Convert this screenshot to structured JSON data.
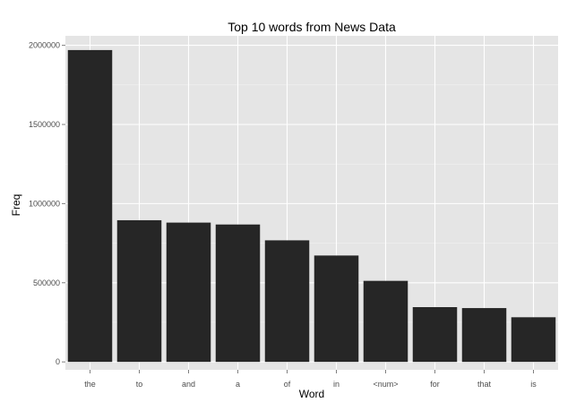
{
  "chart_data": {
    "type": "bar",
    "title": "Top 10 words from News Data",
    "xlabel": "Word",
    "ylabel": "Freq",
    "categories": [
      "the",
      "to",
      "and",
      "a",
      "of",
      "in",
      "<num>",
      "for",
      "that",
      "is"
    ],
    "values": [
      1970000,
      895000,
      880000,
      868000,
      768000,
      672000,
      512000,
      346000,
      340000,
      282000
    ],
    "ylim": [
      -50000,
      2060000
    ],
    "yticks": [
      0,
      500000,
      1000000,
      1500000,
      2000000
    ],
    "ytick_labels": [
      "0",
      "500000",
      "1000000",
      "1500000",
      "2000000"
    ],
    "grid": true,
    "colors": {
      "panel": "#e5e5e5",
      "grid_major": "#ffffff",
      "grid_minor": "#f2f2f2",
      "bar": "#262626",
      "tick": "#7f7f7f"
    }
  }
}
